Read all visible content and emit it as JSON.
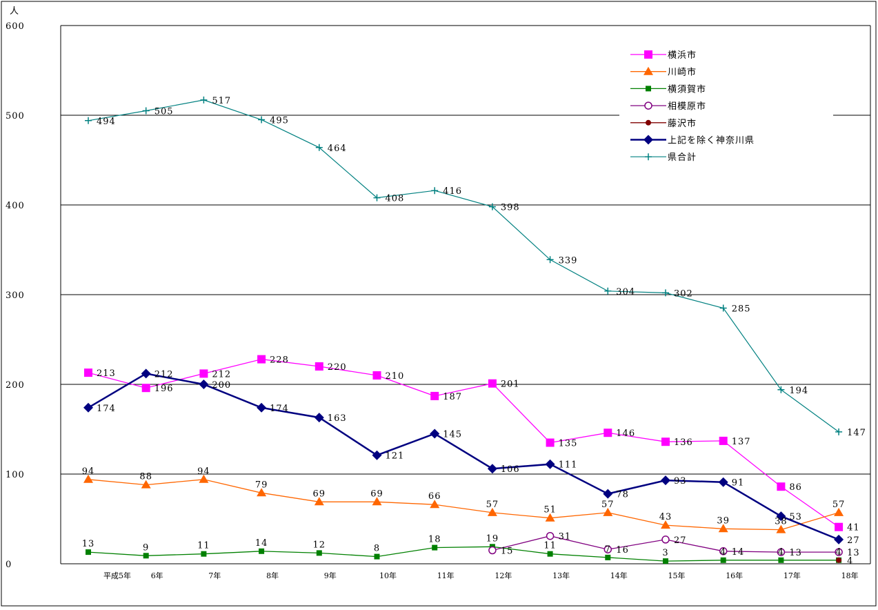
{
  "chart_data": {
    "type": "line",
    "y_unit": "人",
    "categories": [
      "平成5年",
      "6年",
      "7年",
      "8年",
      "9年",
      "10年",
      "11年",
      "12年",
      "13年",
      "14年",
      "15年",
      "16年",
      "17年",
      "18年"
    ],
    "ylim": [
      0,
      600
    ],
    "yticks": [
      "0",
      "100",
      "200",
      "300",
      "400",
      "500",
      "600"
    ],
    "grid": true,
    "legend_position": "top-right",
    "series": [
      {
        "name": "横浜市",
        "color": "#ff00ff",
        "marker": "square",
        "values": [
          213,
          196,
          212,
          228,
          220,
          210,
          187,
          201,
          135,
          146,
          136,
          137,
          86,
          41
        ]
      },
      {
        "name": "川崎市",
        "color": "#ff6600",
        "marker": "triangle",
        "values": [
          94,
          88,
          94,
          79,
          69,
          69,
          66,
          57,
          51,
          57,
          43,
          39,
          38,
          57
        ]
      },
      {
        "name": "横須賀市",
        "color": "#008000",
        "marker": "small-square",
        "values": [
          13,
          9,
          11,
          14,
          12,
          8,
          18,
          19,
          11,
          7,
          3,
          4,
          4,
          4
        ]
      },
      {
        "name": "相模原市",
        "color": "#800080",
        "marker": "circle-open",
        "values": [
          null,
          null,
          null,
          null,
          null,
          null,
          null,
          15,
          31,
          16,
          27,
          14,
          13,
          13
        ]
      },
      {
        "name": "藤沢市",
        "color": "#800000",
        "marker": "circle-filled",
        "values": [
          null,
          null,
          null,
          null,
          null,
          null,
          null,
          null,
          null,
          null,
          null,
          null,
          null,
          4
        ]
      },
      {
        "name": "上記を除く神奈川県",
        "color": "#000080",
        "marker": "diamond",
        "values": [
          174,
          212,
          200,
          174,
          163,
          121,
          145,
          106,
          111,
          78,
          93,
          91,
          53,
          27
        ]
      },
      {
        "name": "県合計",
        "color": "#008080",
        "marker": "plus",
        "values": [
          494,
          505,
          517,
          495,
          464,
          408,
          416,
          398,
          339,
          304,
          302,
          285,
          194,
          147
        ]
      }
    ]
  }
}
